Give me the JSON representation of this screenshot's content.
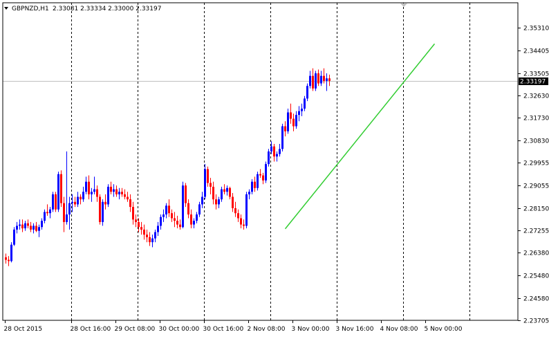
{
  "header": {
    "symbol": "GBPNZD,H1",
    "ohlc": "2.33081 2.33334 2.33000 2.33197",
    "menu_icon": "triangle-down-icon"
  },
  "colors": {
    "background": "#ffffff",
    "axis": "#000000",
    "grid": "#000000",
    "bull": "#0000ff",
    "bear": "#ff0000",
    "trendline": "#32cd32",
    "price_line": "#c0c0c0"
  },
  "chart_data": {
    "type": "candlestick",
    "title": "",
    "xlabel": "",
    "ylabel": "",
    "ylim": [
      2.237,
      2.363
    ],
    "y_ticks": [
      2.3531,
      2.34405,
      2.33505,
      2.3263,
      2.3173,
      2.3083,
      2.29955,
      2.29055,
      2.2815,
      2.27255,
      2.2638,
      2.2548,
      2.2458,
      2.23705
    ],
    "y_tick_labels": [
      "2.35310",
      "2.34405",
      "2.33505",
      "2.32630",
      "2.31730",
      "2.30830",
      "2.29955",
      "2.29055",
      "2.28150",
      "2.27255",
      "2.26380",
      "2.25480",
      "2.24580",
      "2.23705"
    ],
    "x_labels": [
      {
        "bar": 0,
        "label": "28 Oct 2015"
      },
      {
        "bar": 24,
        "label": "28 Oct 16:00"
      },
      {
        "bar": 40,
        "label": "29 Oct 08:00"
      },
      {
        "bar": 56,
        "label": "30 Oct 00:00"
      },
      {
        "bar": 72,
        "label": "30 Oct 16:00"
      },
      {
        "bar": 88,
        "label": "2 Nov 08:00"
      },
      {
        "bar": 104,
        "label": "3 Nov 00:00"
      },
      {
        "bar": 120,
        "label": "3 Nov 16:00"
      },
      {
        "bar": 136,
        "label": "4 Nov 08:00"
      },
      {
        "bar": 152,
        "label": "5 Nov 00:00"
      }
    ],
    "grid_bars": [
      24,
      48,
      72,
      96,
      120,
      144,
      168
    ],
    "current_price": 2.33197,
    "current_price_label": "2.33197",
    "trendline": {
      "start": {
        "bar": 101,
        "price": 2.2733
      },
      "end": {
        "bar": 155,
        "price": 2.3467
      }
    },
    "candles": [
      [
        2.262,
        2.2635,
        2.2595,
        2.261
      ],
      [
        2.261,
        2.2625,
        2.2585,
        2.2605
      ],
      [
        2.2605,
        2.268,
        2.26,
        2.267
      ],
      [
        2.267,
        2.274,
        2.2665,
        2.273
      ],
      [
        2.273,
        2.276,
        2.2715,
        2.2745
      ],
      [
        2.2745,
        2.277,
        2.273,
        2.275
      ],
      [
        2.275,
        2.277,
        2.272,
        2.2735
      ],
      [
        2.2735,
        2.2765,
        2.2725,
        2.2755
      ],
      [
        2.2755,
        2.277,
        2.2735,
        2.2745
      ],
      [
        2.2745,
        2.276,
        2.272,
        2.273
      ],
      [
        2.273,
        2.2755,
        2.2715,
        2.2745
      ],
      [
        2.2745,
        2.276,
        2.272,
        2.2725
      ],
      [
        2.2725,
        2.275,
        2.27,
        2.274
      ],
      [
        2.274,
        2.2775,
        2.273,
        2.2765
      ],
      [
        2.2765,
        2.281,
        2.2755,
        2.28
      ],
      [
        2.28,
        2.283,
        2.2785,
        2.2795
      ],
      [
        2.2795,
        2.282,
        2.2775,
        2.281
      ],
      [
        2.281,
        2.288,
        2.28,
        2.287
      ],
      [
        2.287,
        2.288,
        2.28,
        2.281
      ],
      [
        2.281,
        2.296,
        2.28,
        2.295
      ],
      [
        2.295,
        2.2965,
        2.282,
        2.2835
      ],
      [
        2.2835,
        2.286,
        2.272,
        2.276
      ],
      [
        2.276,
        2.304,
        2.275,
        2.279
      ],
      [
        2.279,
        2.286,
        2.273,
        2.2835
      ],
      [
        2.2835,
        2.287,
        2.28,
        2.284
      ],
      [
        2.284,
        2.286,
        2.282,
        2.283
      ],
      [
        2.283,
        2.288,
        2.282,
        2.286
      ],
      [
        2.286,
        2.287,
        2.283,
        2.285
      ],
      [
        2.285,
        2.29,
        2.284,
        2.288
      ],
      [
        2.288,
        2.294,
        2.287,
        2.292
      ],
      [
        2.292,
        2.2945,
        2.285,
        2.287
      ],
      [
        2.287,
        2.2895,
        2.284,
        2.288
      ],
      [
        2.288,
        2.294,
        2.287,
        2.289
      ],
      [
        2.289,
        2.2905,
        2.284,
        2.286
      ],
      [
        2.286,
        2.287,
        2.275,
        2.276
      ],
      [
        2.276,
        2.285,
        2.2745,
        2.284
      ],
      [
        2.284,
        2.287,
        2.281,
        2.283
      ],
      [
        2.283,
        2.291,
        2.282,
        2.29
      ],
      [
        2.29,
        2.292,
        2.287,
        2.288
      ],
      [
        2.288,
        2.291,
        2.286,
        2.289
      ],
      [
        2.289,
        2.2905,
        2.286,
        2.287
      ],
      [
        2.287,
        2.2895,
        2.285,
        2.288
      ],
      [
        2.288,
        2.2895,
        2.286,
        2.287
      ],
      [
        2.287,
        2.289,
        2.285,
        2.286
      ],
      [
        2.286,
        2.288,
        2.284,
        2.285
      ],
      [
        2.285,
        2.287,
        2.28,
        2.282
      ],
      [
        2.282,
        2.284,
        2.275,
        2.277
      ],
      [
        2.277,
        2.279,
        2.274,
        2.276
      ],
      [
        2.276,
        2.2775,
        2.272,
        2.274
      ],
      [
        2.274,
        2.276,
        2.271,
        2.273
      ],
      [
        2.273,
        2.275,
        2.269,
        2.271
      ],
      [
        2.271,
        2.273,
        2.268,
        2.27
      ],
      [
        2.27,
        2.272,
        2.2665,
        2.268
      ],
      [
        2.268,
        2.271,
        2.266,
        2.2695
      ],
      [
        2.2695,
        2.273,
        2.268,
        2.272
      ],
      [
        2.272,
        2.276,
        2.2705,
        2.2745
      ],
      [
        2.2745,
        2.279,
        2.273,
        2.278
      ],
      [
        2.278,
        2.281,
        2.276,
        2.279
      ],
      [
        2.279,
        2.2835,
        2.2775,
        2.2825
      ],
      [
        2.2825,
        2.285,
        2.278,
        2.2795
      ],
      [
        2.2795,
        2.281,
        2.276,
        2.2775
      ],
      [
        2.2775,
        2.28,
        2.274,
        2.2765
      ],
      [
        2.2765,
        2.2785,
        2.2735,
        2.275
      ],
      [
        2.275,
        2.277,
        2.273,
        2.274
      ],
      [
        2.274,
        2.292,
        2.2735,
        2.2905
      ],
      [
        2.2905,
        2.2915,
        2.282,
        2.2835
      ],
      [
        2.2835,
        2.285,
        2.2775,
        2.279
      ],
      [
        2.279,
        2.281,
        2.2735,
        2.275
      ],
      [
        2.275,
        2.2775,
        2.2735,
        2.2765
      ],
      [
        2.2765,
        2.28,
        2.2755,
        2.279
      ],
      [
        2.279,
        2.284,
        2.278,
        2.283
      ],
      [
        2.283,
        2.288,
        2.2815,
        2.286
      ],
      [
        2.286,
        2.299,
        2.285,
        2.297
      ],
      [
        2.297,
        2.298,
        2.29,
        2.2915
      ],
      [
        2.2915,
        2.2935,
        2.287,
        2.29
      ],
      [
        2.29,
        2.292,
        2.283,
        2.285
      ],
      [
        2.285,
        2.287,
        2.281,
        2.283
      ],
      [
        2.283,
        2.286,
        2.2815,
        2.285
      ],
      [
        2.285,
        2.29,
        2.284,
        2.289
      ],
      [
        2.289,
        2.291,
        2.287,
        2.288
      ],
      [
        2.288,
        2.2905,
        2.2865,
        2.2895
      ],
      [
        2.2895,
        2.29,
        2.285,
        2.286
      ],
      [
        2.286,
        2.2875,
        2.28,
        2.2815
      ],
      [
        2.2815,
        2.284,
        2.278,
        2.2795
      ],
      [
        2.2795,
        2.281,
        2.276,
        2.2775
      ],
      [
        2.2775,
        2.279,
        2.2735,
        2.275
      ],
      [
        2.275,
        2.277,
        2.273,
        2.2745
      ],
      [
        2.2745,
        2.288,
        2.2735,
        2.287
      ],
      [
        2.287,
        2.289,
        2.285,
        2.288
      ],
      [
        2.288,
        2.293,
        2.287,
        2.292
      ],
      [
        2.292,
        2.294,
        2.288,
        2.2895
      ],
      [
        2.2895,
        2.296,
        2.2885,
        2.295
      ],
      [
        2.295,
        2.297,
        2.2935,
        2.2945
      ],
      [
        2.2945,
        2.2955,
        2.291,
        2.2925
      ],
      [
        2.2925,
        2.3,
        2.2915,
        2.299
      ],
      [
        2.299,
        2.305,
        2.298,
        2.304
      ],
      [
        2.304,
        2.308,
        2.303,
        2.306
      ],
      [
        2.306,
        2.307,
        2.3,
        2.302
      ],
      [
        2.302,
        2.304,
        2.3,
        2.303
      ],
      [
        2.303,
        2.307,
        2.302,
        2.305
      ],
      [
        2.305,
        2.315,
        2.304,
        2.314
      ],
      [
        2.314,
        2.316,
        2.31,
        2.312
      ],
      [
        2.312,
        2.321,
        2.311,
        2.3195
      ],
      [
        2.3195,
        2.323,
        2.315,
        2.317
      ],
      [
        2.317,
        2.319,
        2.312,
        2.314
      ],
      [
        2.314,
        2.32,
        2.313,
        2.3185
      ],
      [
        2.3185,
        2.322,
        2.316,
        2.32
      ],
      [
        2.32,
        2.323,
        2.318,
        2.321
      ],
      [
        2.321,
        2.326,
        2.32,
        2.325
      ],
      [
        2.325,
        2.331,
        2.324,
        2.33
      ],
      [
        2.33,
        2.336,
        2.329,
        2.334
      ],
      [
        2.334,
        2.337,
        2.328,
        2.329
      ],
      [
        2.329,
        2.336,
        2.328,
        2.335
      ],
      [
        2.335,
        2.3365,
        2.33,
        2.331
      ],
      [
        2.331,
        2.336,
        2.33,
        2.334
      ],
      [
        2.334,
        2.337,
        2.331,
        2.332
      ],
      [
        2.332,
        2.335,
        2.328,
        2.333
      ],
      [
        2.333,
        2.3345,
        2.33,
        2.332
      ]
    ]
  }
}
